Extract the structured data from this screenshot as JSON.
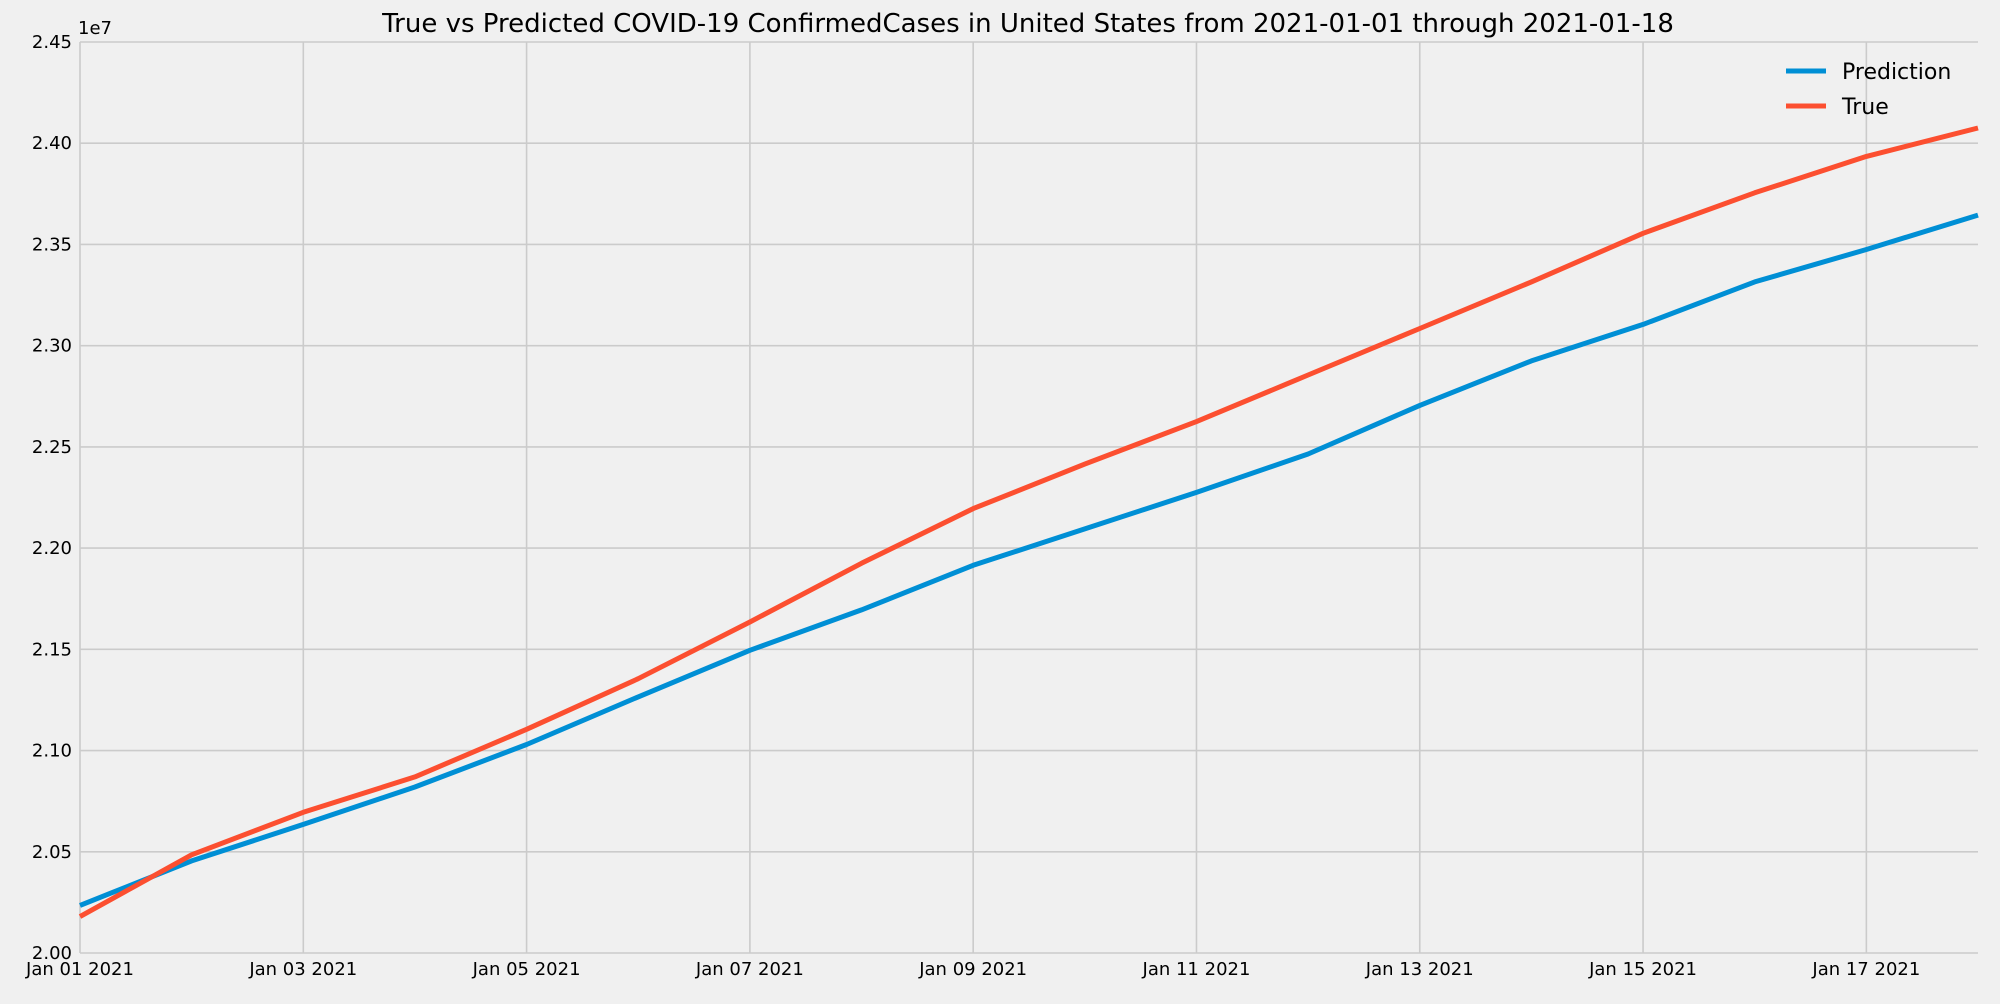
{
  "chart_data": {
    "type": "line",
    "title": "True vs Predicted COVID-19 ConfirmedCases in United States from 2021-01-01 through 2021-01-18",
    "xlabel": "",
    "ylabel": "",
    "y_offset_label": "1e7",
    "x": [
      "2021-01-01",
      "2021-01-02",
      "2021-01-03",
      "2021-01-04",
      "2021-01-05",
      "2021-01-06",
      "2021-01-07",
      "2021-01-08",
      "2021-01-09",
      "2021-01-10",
      "2021-01-11",
      "2021-01-12",
      "2021-01-13",
      "2021-01-14",
      "2021-01-15",
      "2021-01-16",
      "2021-01-17",
      "2021-01-18"
    ],
    "xlim": [
      "2021-01-01",
      "2021-01-18"
    ],
    "ylim": [
      2.0,
      2.45
    ],
    "x_ticks": [
      {
        "date": "2021-01-01",
        "label": "Jan 01 2021"
      },
      {
        "date": "2021-01-03",
        "label": "Jan 03 2021"
      },
      {
        "date": "2021-01-05",
        "label": "Jan 05 2021"
      },
      {
        "date": "2021-01-07",
        "label": "Jan 07 2021"
      },
      {
        "date": "2021-01-09",
        "label": "Jan 09 2021"
      },
      {
        "date": "2021-01-11",
        "label": "Jan 11 2021"
      },
      {
        "date": "2021-01-13",
        "label": "Jan 13 2021"
      },
      {
        "date": "2021-01-15",
        "label": "Jan 15 2021"
      },
      {
        "date": "2021-01-17",
        "label": "Jan 17 2021"
      }
    ],
    "y_ticks": [
      {
        "value": 2.0,
        "label": "2.00"
      },
      {
        "value": 2.05,
        "label": "2.05"
      },
      {
        "value": 2.1,
        "label": "2.10"
      },
      {
        "value": 2.15,
        "label": "2.15"
      },
      {
        "value": 2.2,
        "label": "2.20"
      },
      {
        "value": 2.25,
        "label": "2.25"
      },
      {
        "value": 2.3,
        "label": "2.30"
      },
      {
        "value": 2.35,
        "label": "2.35"
      },
      {
        "value": 2.4,
        "label": "2.40"
      },
      {
        "value": 2.45,
        "label": "2.45"
      }
    ],
    "series": [
      {
        "name": "Prediction",
        "color": "#008fd5",
        "values": [
          2.0235,
          2.0455,
          2.0635,
          2.082,
          2.103,
          2.1265,
          2.1495,
          2.1695,
          2.1915,
          2.2095,
          2.2275,
          2.2465,
          2.2705,
          2.2925,
          2.3105,
          2.3315,
          2.3475,
          2.3645
        ]
      },
      {
        "name": "True",
        "color": "#fc4f30",
        "values": [
          2.018,
          2.0485,
          2.0695,
          2.087,
          2.1105,
          2.1355,
          2.1635,
          2.1925,
          2.2195,
          2.2415,
          2.2625,
          2.2855,
          2.3085,
          2.3315,
          2.3555,
          2.3755,
          2.3935,
          2.4075
        ]
      }
    ],
    "grid": true,
    "legend_position": "top-right"
  }
}
